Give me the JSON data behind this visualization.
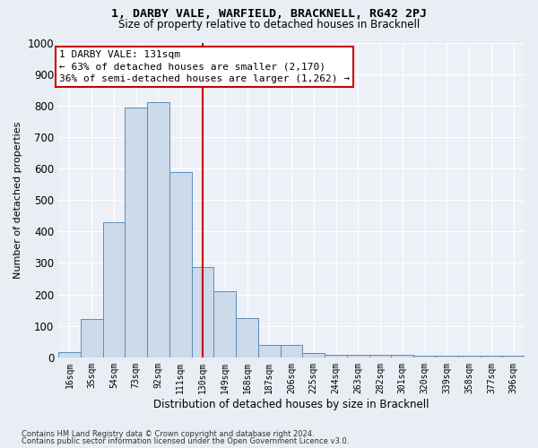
{
  "title": "1, DARBY VALE, WARFIELD, BRACKNELL, RG42 2PJ",
  "subtitle": "Size of property relative to detached houses in Bracknell",
  "xlabel": "Distribution of detached houses by size in Bracknell",
  "ylabel": "Number of detached properties",
  "bar_labels": [
    "16sqm",
    "35sqm",
    "54sqm",
    "73sqm",
    "92sqm",
    "111sqm",
    "130sqm",
    "149sqm",
    "168sqm",
    "187sqm",
    "206sqm",
    "225sqm",
    "244sqm",
    "263sqm",
    "282sqm",
    "301sqm",
    "320sqm",
    "339sqm",
    "358sqm",
    "377sqm",
    "396sqm"
  ],
  "bar_values": [
    17,
    122,
    430,
    795,
    810,
    590,
    287,
    210,
    125,
    38,
    38,
    13,
    7,
    7,
    7,
    7,
    4,
    4,
    4,
    4,
    5
  ],
  "bar_color": "#ccdaea",
  "bar_edge_color": "#5b8db8",
  "vline_x": 6.0,
  "annotation_line1": "1 DARBY VALE: 131sqm",
  "annotation_line2": "← 63% of detached houses are smaller (2,170)",
  "annotation_line3": "36% of semi-detached houses are larger (1,262) →",
  "annotation_box_color": "#ffffff",
  "annotation_border_color": "#cc0000",
  "vline_color": "#cc0000",
  "ylim": [
    0,
    1000
  ],
  "yticks": [
    0,
    100,
    200,
    300,
    400,
    500,
    600,
    700,
    800,
    900,
    1000
  ],
  "footer1": "Contains HM Land Registry data © Crown copyright and database right 2024.",
  "footer2": "Contains public sector information licensed under the Open Government Licence v3.0.",
  "bg_color": "#e8eef4",
  "plot_bg_color": "#edf1f7",
  "grid_color": "#ffffff"
}
